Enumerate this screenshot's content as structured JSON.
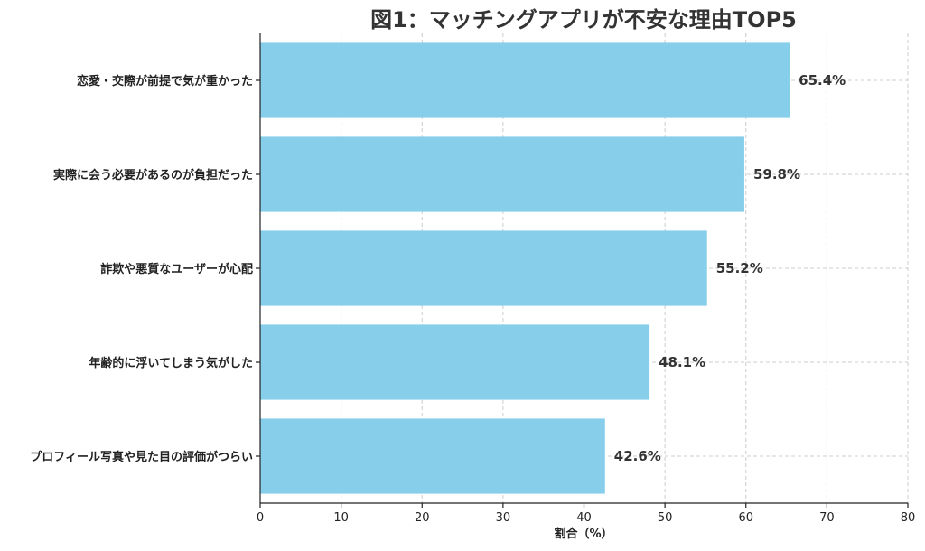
{
  "chart_data": {
    "type": "bar",
    "orientation": "horizontal",
    "title": "図1：マッチングアプリが不安な理由TOP5",
    "xlabel": "割合（%）",
    "ylabel": "",
    "categories": [
      "恋愛・交際が前提で気が重かった",
      "実際に会う必要があるのが負担だった",
      "詐欺や悪質なユーザーが心配",
      "年齢的に浮いてしまう気がした",
      "プロフィール写真や見た目の評価がつらい"
    ],
    "values": [
      65.4,
      59.8,
      55.2,
      48.1,
      42.6
    ],
    "value_labels": [
      "65.4%",
      "59.8%",
      "55.2%",
      "48.1%",
      "42.6%"
    ],
    "xlim": [
      0,
      80
    ],
    "xticks": [
      0,
      10,
      20,
      30,
      40,
      50,
      60,
      70,
      80
    ],
    "grid": true,
    "bar_color": "#87ceeb"
  }
}
